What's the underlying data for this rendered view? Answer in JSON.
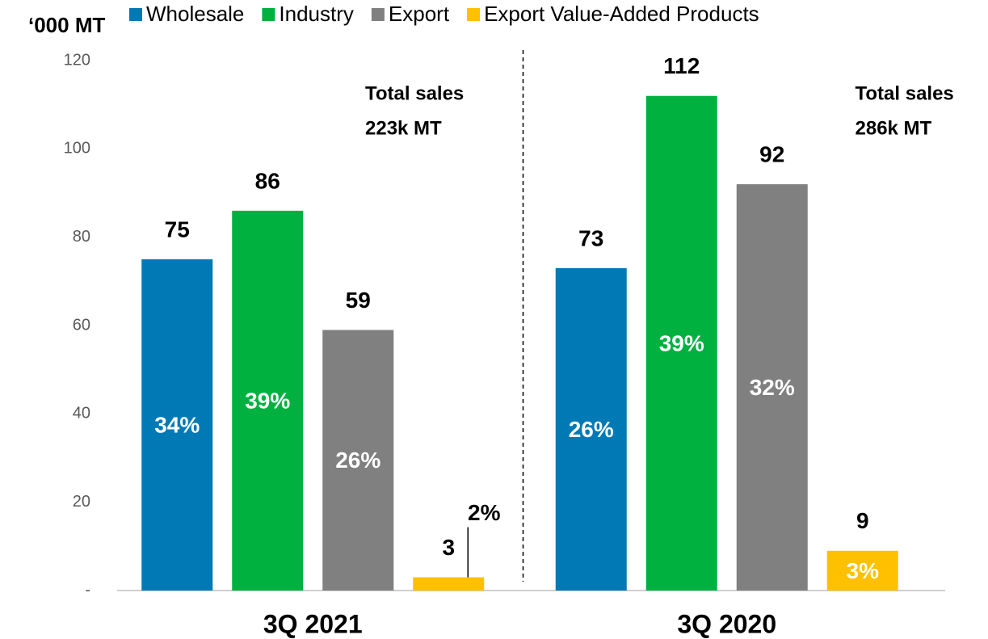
{
  "chart_data": {
    "type": "bar",
    "y_label": "‘000 MT",
    "categories": [
      "3Q 2021",
      "3Q 2020"
    ],
    "series": [
      {
        "name": "Wholesale",
        "color": "#0079b5",
        "values": [
          75,
          73
        ],
        "share_labels": [
          "34%",
          "26%"
        ]
      },
      {
        "name": "Industry",
        "color": "#00b140",
        "values": [
          86,
          112
        ],
        "share_labels": [
          "39%",
          "39%"
        ]
      },
      {
        "name": "Export",
        "color": "#808080",
        "values": [
          59,
          92
        ],
        "share_labels": [
          "26%",
          "32%"
        ]
      },
      {
        "name": "Export Value-Added Products",
        "color": "#ffc000",
        "values": [
          3,
          9
        ],
        "share_labels": [
          "2%",
          "3%"
        ]
      }
    ],
    "annotations": [
      {
        "lines": [
          "Total sales",
          "223k MT"
        ]
      },
      {
        "lines": [
          "Total sales",
          "286k MT"
        ]
      }
    ],
    "ylim": [
      0,
      120
    ],
    "yticks": [
      {
        "value": 0,
        "label": "-"
      },
      20,
      40,
      60,
      80,
      100,
      120
    ],
    "legend": "top"
  }
}
